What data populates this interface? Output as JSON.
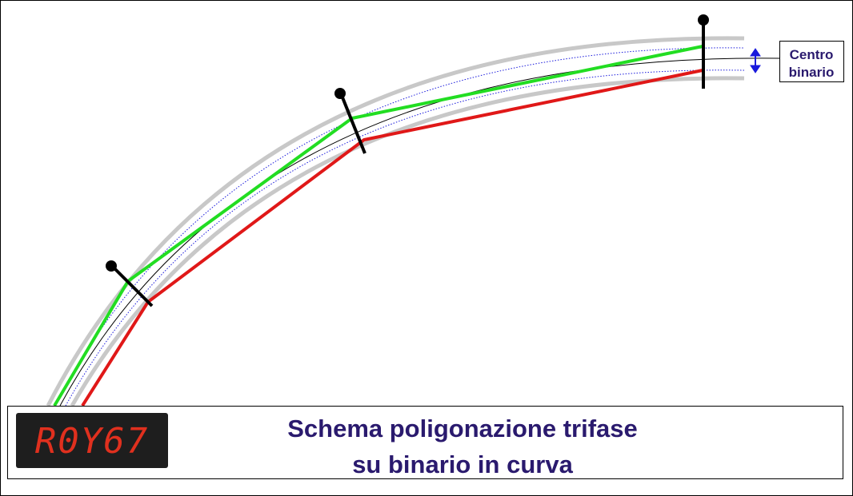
{
  "label": {
    "lines": [
      "Centro",
      "binario"
    ]
  },
  "badge": {
    "text": "R0Y67"
  },
  "title": {
    "lines": [
      "Schema poligonazione trifase",
      "su binario in curva"
    ]
  }
}
